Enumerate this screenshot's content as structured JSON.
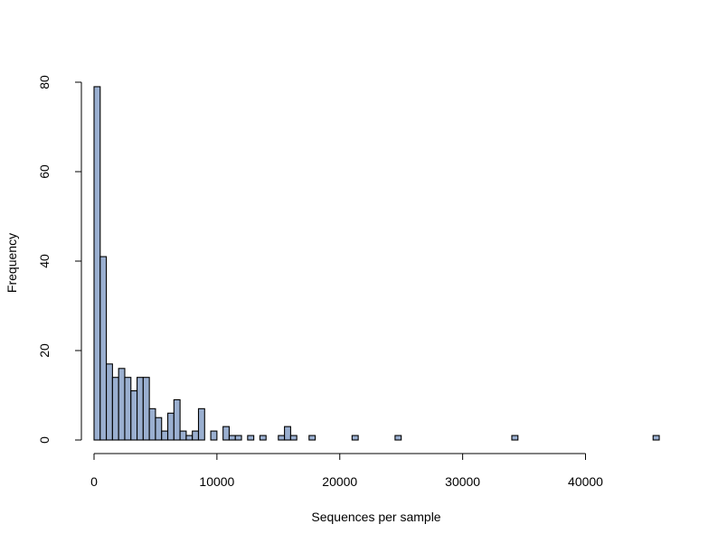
{
  "chart_data": {
    "type": "bar",
    "title": "",
    "xlabel": "Sequences per sample",
    "ylabel": "Frequency",
    "bin_width": 500,
    "xlim": [
      0,
      46000
    ],
    "ylim": [
      0,
      80
    ],
    "x_ticks": [
      0,
      10000,
      20000,
      30000,
      40000
    ],
    "x_tick_labels": [
      "0",
      "10000",
      "20000",
      "30000",
      "40000"
    ],
    "y_ticks": [
      0,
      20,
      40,
      60,
      80
    ],
    "y_tick_labels": [
      "0",
      "20",
      "40",
      "60",
      "80"
    ],
    "bins": [
      {
        "start": 0,
        "count": 79
      },
      {
        "start": 500,
        "count": 41
      },
      {
        "start": 1000,
        "count": 17
      },
      {
        "start": 1500,
        "count": 14
      },
      {
        "start": 2000,
        "count": 16
      },
      {
        "start": 2500,
        "count": 14
      },
      {
        "start": 3000,
        "count": 11
      },
      {
        "start": 3500,
        "count": 14
      },
      {
        "start": 4000,
        "count": 14
      },
      {
        "start": 4500,
        "count": 7
      },
      {
        "start": 5000,
        "count": 5
      },
      {
        "start": 5500,
        "count": 2
      },
      {
        "start": 6000,
        "count": 6
      },
      {
        "start": 6500,
        "count": 9
      },
      {
        "start": 7000,
        "count": 2
      },
      {
        "start": 7500,
        "count": 1
      },
      {
        "start": 8000,
        "count": 2
      },
      {
        "start": 8500,
        "count": 7
      },
      {
        "start": 9500,
        "count": 2
      },
      {
        "start": 10500,
        "count": 3
      },
      {
        "start": 11000,
        "count": 1
      },
      {
        "start": 11500,
        "count": 1
      },
      {
        "start": 12500,
        "count": 1
      },
      {
        "start": 13500,
        "count": 1
      },
      {
        "start": 15000,
        "count": 1
      },
      {
        "start": 15500,
        "count": 3
      },
      {
        "start": 16000,
        "count": 1
      },
      {
        "start": 17500,
        "count": 1
      },
      {
        "start": 21000,
        "count": 1
      },
      {
        "start": 24500,
        "count": 1
      },
      {
        "start": 34000,
        "count": 1
      },
      {
        "start": 45500,
        "count": 1
      }
    ],
    "bar_fill": "#9aafd0",
    "bar_stroke": "#000000",
    "grid": false
  }
}
